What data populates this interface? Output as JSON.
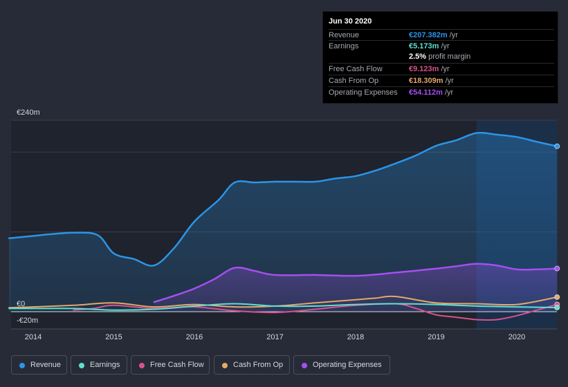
{
  "chart_data": {
    "type": "area",
    "title": "",
    "xlabel": "",
    "ylabel": "",
    "y_unit": "€m",
    "ylim": [
      -20,
      240
    ],
    "ytick_labels": [
      "€240m",
      "€0",
      "-€20m"
    ],
    "xtick_labels": [
      "2014",
      "2015",
      "2016",
      "2017",
      "2018",
      "2019",
      "2020"
    ],
    "xticks": [
      2014,
      2015,
      2016,
      2017,
      2018,
      2019,
      2020
    ],
    "xlim": [
      2013.7,
      2020.5
    ],
    "highlight_start": 2019.5,
    "series": [
      {
        "name": "Revenue",
        "color": "#2b95e8",
        "fill": true,
        "x": [
          2013.7,
          2014.0,
          2014.2,
          2014.5,
          2014.8,
          2015.0,
          2015.25,
          2015.5,
          2015.75,
          2016.0,
          2016.3,
          2016.5,
          2016.75,
          2017.0,
          2017.25,
          2017.5,
          2017.75,
          2018.0,
          2018.25,
          2018.5,
          2018.75,
          2019.0,
          2019.25,
          2019.5,
          2019.75,
          2020.0,
          2020.25,
          2020.5
        ],
        "values": [
          92,
          95,
          97,
          99,
          96,
          73,
          66,
          58,
          80,
          113,
          140,
          162,
          162,
          163,
          163,
          163,
          167,
          170,
          177,
          186,
          196,
          208,
          215,
          224,
          222,
          219,
          213,
          207.382
        ]
      },
      {
        "name": "Operating Expenses",
        "color": "#a64ff0",
        "fill": true,
        "x": [
          2015.5,
          2015.75,
          2016.0,
          2016.25,
          2016.5,
          2016.75,
          2017.0,
          2017.5,
          2018.0,
          2018.5,
          2019.0,
          2019.25,
          2019.5,
          2019.75,
          2020.0,
          2020.25,
          2020.5
        ],
        "values": [
          12,
          20,
          29,
          41,
          55,
          51,
          46,
          46,
          45,
          49,
          54,
          57,
          60,
          58,
          53,
          53,
          54.112
        ]
      },
      {
        "name": "Cash From Op",
        "color": "#e4a96a",
        "fill": false,
        "x": [
          2013.7,
          2014.0,
          2014.5,
          2015.0,
          2015.5,
          2016.0,
          2016.5,
          2017.0,
          2017.5,
          2018.0,
          2018.25,
          2018.5,
          2019.0,
          2019.5,
          2020.0,
          2020.5
        ],
        "values": [
          5,
          6,
          8,
          11,
          6,
          9,
          6,
          7,
          11,
          15,
          17,
          19,
          11,
          10,
          9,
          18.309
        ]
      },
      {
        "name": "Free Cash Flow",
        "color": "#d8528e",
        "fill": false,
        "x": [
          2014.5,
          2014.75,
          2015.0,
          2015.5,
          2016.0,
          2016.5,
          2017.0,
          2017.5,
          2018.0,
          2018.5,
          2018.75,
          2019.0,
          2019.25,
          2019.5,
          2019.75,
          2020.0,
          2020.25,
          2020.5
        ],
        "values": [
          2,
          4,
          8,
          4,
          6,
          1,
          -1,
          3,
          8,
          10,
          4,
          -4,
          -7,
          -10,
          -10,
          -5,
          2,
          9.123
        ]
      },
      {
        "name": "Earnings",
        "color": "#5de1cf",
        "fill": false,
        "x": [
          2013.7,
          2014.0,
          2014.5,
          2015.0,
          2015.5,
          2016.0,
          2016.5,
          2017.0,
          2017.5,
          2018.0,
          2018.5,
          2019.0,
          2019.5,
          2020.0,
          2020.5
        ],
        "values": [
          4,
          4,
          4,
          2,
          3,
          7,
          10,
          7,
          7,
          9,
          10,
          9,
          7,
          6,
          5.173
        ]
      }
    ],
    "legend": [
      "Revenue",
      "Earnings",
      "Free Cash Flow",
      "Cash From Op",
      "Operating Expenses"
    ],
    "legend_position": "bottom-left"
  },
  "tooltip": {
    "date": "Jun 30 2020",
    "rows": [
      {
        "label": "Revenue",
        "value": "€207.382m",
        "unit": "/yr",
        "color": "#2b95e8"
      },
      {
        "label": "Earnings",
        "value": "€5.173m",
        "unit": "/yr",
        "color": "#5de1cf"
      },
      {
        "label": "",
        "value": "2.5%",
        "unit": "profit margin",
        "color": "#ffffff"
      },
      {
        "label": "Free Cash Flow",
        "value": "€9.123m",
        "unit": "/yr",
        "color": "#d8528e"
      },
      {
        "label": "Cash From Op",
        "value": "€18.309m",
        "unit": "/yr",
        "color": "#e4a96a"
      },
      {
        "label": "Operating Expenses",
        "value": "€54.112m",
        "unit": "/yr",
        "color": "#a64ff0"
      }
    ]
  },
  "legend_items": [
    {
      "label": "Revenue",
      "color": "#2b95e8"
    },
    {
      "label": "Earnings",
      "color": "#5de1cf"
    },
    {
      "label": "Free Cash Flow",
      "color": "#d8528e"
    },
    {
      "label": "Cash From Op",
      "color": "#e4a96a"
    },
    {
      "label": "Operating Expenses",
      "color": "#a64ff0"
    }
  ]
}
